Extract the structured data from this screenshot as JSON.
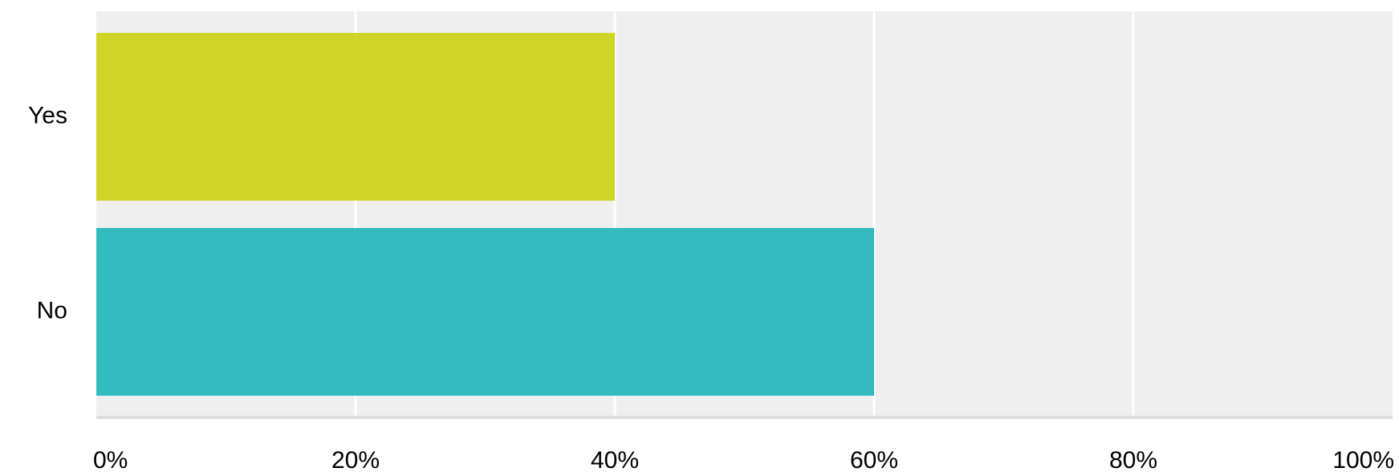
{
  "chart_data": {
    "type": "bar",
    "orientation": "horizontal",
    "categories": [
      "Yes",
      "No"
    ],
    "values": [
      40,
      60
    ],
    "x_ticks": [
      "0%",
      "20%",
      "40%",
      "60%",
      "80%",
      "100%"
    ],
    "xlim": [
      0,
      100
    ],
    "grid": true,
    "colors": {
      "bars": [
        "#d0d426",
        "#33bbbf"
      ],
      "plot_background": "#efefef",
      "gridline": "#ffffff",
      "axis_line": "#dddddd"
    }
  }
}
